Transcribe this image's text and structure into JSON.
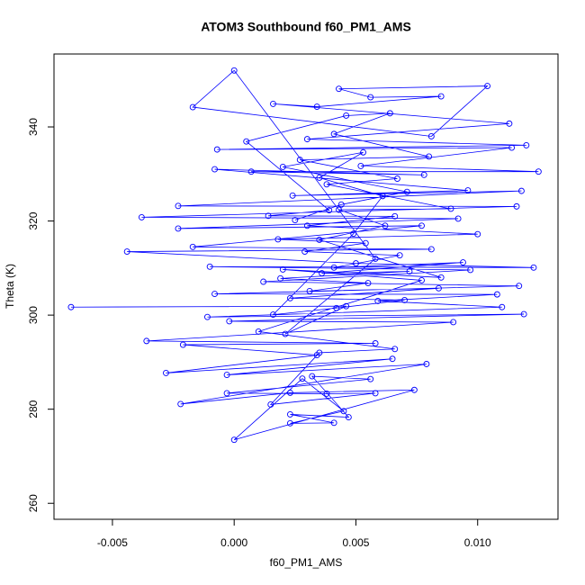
{
  "chart_data": {
    "type": "line",
    "marker": "circle",
    "color": "#0000ff",
    "title": "ATOM3 Southbound f60_PM1_AMS",
    "xlabel": "f60_PM1_AMS",
    "ylabel": "Theta (K)",
    "xlim": [
      -0.0074,
      0.0133
    ],
    "ylim": [
      256.6,
      355.5
    ],
    "xticks": [
      -0.005,
      {
        "value": 0,
        "label": "0.000"
      },
      0.005,
      {
        "value": 0.01,
        "label": "0.010"
      }
    ],
    "yticks": [
      260,
      280,
      300,
      320,
      340
    ],
    "grid": false,
    "x": [
      -0.0067,
      0.0046,
      0.0021,
      0.0058,
      0.0,
      -0.0017,
      0.0081,
      0.0104,
      0.0043,
      0.0056,
      0.0085,
      0.0034,
      0.0016,
      0.0113,
      0.003,
      0.012,
      -0.0007,
      0.0114,
      0.0052,
      0.0125,
      0.0007,
      0.0078,
      -0.0008,
      0.0096,
      0.0024,
      0.0118,
      -0.0023,
      0.0116,
      -0.0038,
      0.0092,
      -0.0023,
      0.0077,
      -0.0017,
      0.0081,
      -0.0044,
      0.005,
      0.0123,
      -0.001,
      0.0097,
      0.0012,
      0.0117,
      -0.0008,
      0.0108,
      0.0059,
      0.011,
      -0.0011,
      0.0119,
      -0.0002,
      0.009,
      -0.0036,
      0.0058,
      -0.0021,
      0.0034,
      -0.0028,
      0.0065,
      -0.0003,
      0.0079,
      -0.0022,
      0.0023,
      0.0074,
      0.0,
      0.0028,
      0.0045,
      0.0023,
      0.0041,
      0.0023,
      0.0047,
      0.0032,
      0.0056,
      -0.0003,
      0.0038,
      0.0058,
      0.0015,
      0.0035,
      0.0066,
      0.001,
      0.0077,
      0.002,
      0.0085,
      0.0035,
      0.0062,
      0.0043,
      0.0089,
      0.0038,
      0.0067,
      0.0027,
      0.008,
      0.0041,
      0.0064,
      0.0046,
      0.0005,
      0.0039,
      0.0014,
      0.0066,
      0.003,
      0.01,
      0.0018,
      0.0054,
      0.0029,
      0.0068,
      0.0041,
      0.0094,
      0.0036,
      0.0072,
      0.0019,
      0.0055,
      0.0031,
      0.0084,
      0.0023,
      0.007,
      0.0042,
      0.0016,
      0.0049,
      0.0061,
      0.0035,
      0.0053,
      0.002,
      0.0071,
      0.0044,
      0.0025
    ],
    "values": [
      301.7,
      301.9,
      296,
      312,
      352,
      344.2,
      338,
      348.7,
      348.1,
      346.3,
      346.5,
      344.3,
      344.9,
      340.7,
      337.4,
      336.1,
      335.2,
      335.6,
      331.7,
      330.5,
      330.5,
      329.8,
      331,
      326.5,
      325.4,
      326.4,
      323.2,
      323.1,
      320.8,
      320.5,
      318.4,
      319,
      314.5,
      314,
      313.5,
      311,
      310.1,
      310.3,
      309.6,
      307.1,
      306.2,
      304.5,
      304.4,
      303,
      301.7,
      299.6,
      300.2,
      298.7,
      298.5,
      294.5,
      294,
      293.7,
      291.5,
      287.7,
      290.7,
      287.3,
      289.6,
      281.1,
      283.5,
      284.1,
      273.5,
      286.5,
      279.6,
      277,
      277.1,
      278.9,
      278.3,
      287,
      286.4,
      283.4,
      283.3,
      283.4,
      281,
      292,
      292.8,
      296.5,
      307.4,
      309.7,
      308,
      316,
      319,
      322.4,
      322.6,
      327.8,
      329,
      333,
      333.7,
      338.5,
      342.9,
      342.4,
      336.9,
      322.3,
      321.1,
      321,
      319,
      317.2,
      316.1,
      315.3,
      313.5,
      312.7,
      310.1,
      311.2,
      308.9,
      309.3,
      307.8,
      306.8,
      305.1,
      305.7,
      303.6,
      303.2,
      301.5,
      300.1,
      317.3,
      325.3,
      329.2,
      334.6,
      331.5,
      326.2,
      323.5,
      320.2
    ]
  }
}
